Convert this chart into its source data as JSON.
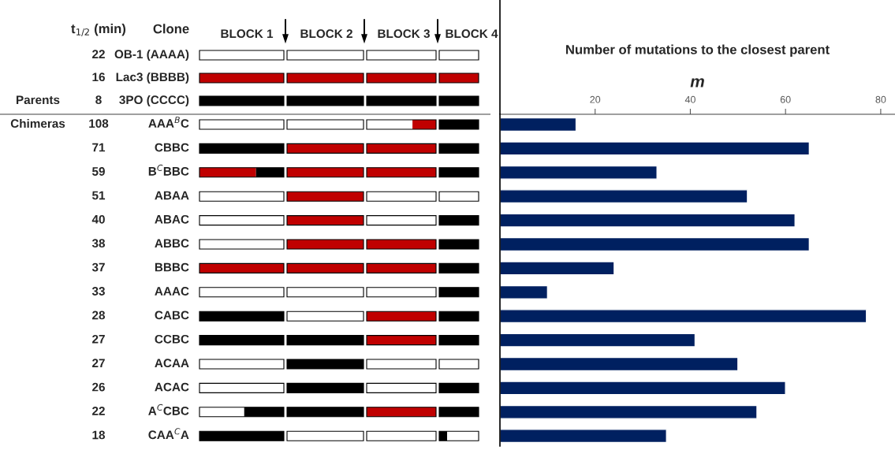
{
  "chart_data": [
    {
      "type": "other",
      "annotations": [
        "t$_{1/2}$ (min)",
        "Clone",
        "BLOCK 1",
        "BLOCK 2",
        "BLOCK 3",
        "BLOCK 4",
        "Parents",
        "Chimeras"
      ],
      "categories": [
        "OB-1 (AAAA)",
        "Lac3 (BBBB)",
        "3PO (CCCC)",
        "AAA$^{B}$C",
        "CBBC",
        "B$^{C}$BBC",
        "ABAA",
        "ABAC",
        "ABBC",
        "BBBC",
        "AAAC",
        "CABC",
        "CCBC",
        "ACAA",
        "ACAC",
        "A$^{C}$CBC",
        "CAA$^{C}$A"
      ],
      "y_categories": [
        "22",
        "16",
        "8",
        "108",
        "71",
        "59",
        "51",
        "40",
        "38",
        "37",
        "33",
        "28",
        "27",
        "27",
        "26",
        "22",
        "18"
      ]
    },
    {
      "type": "bar",
      "orientation": "horizontal",
      "title": "Number of mutations to the closest parent",
      "xlabel": "m",
      "categories": [
        null,
        null,
        null,
        null,
        null,
        null,
        null,
        null,
        null,
        null,
        null,
        null,
        null,
        null
      ],
      "values": [
        16,
        65,
        33,
        52,
        62,
        65,
        24,
        10,
        77,
        41,
        50,
        60,
        54,
        35
      ],
      "color": "#002060",
      "xlim": [
        0,
        83
      ],
      "xticks": [
        20,
        40,
        60,
        80
      ],
      "tick_labels": "x",
      "grid": false
    }
  ]
}
